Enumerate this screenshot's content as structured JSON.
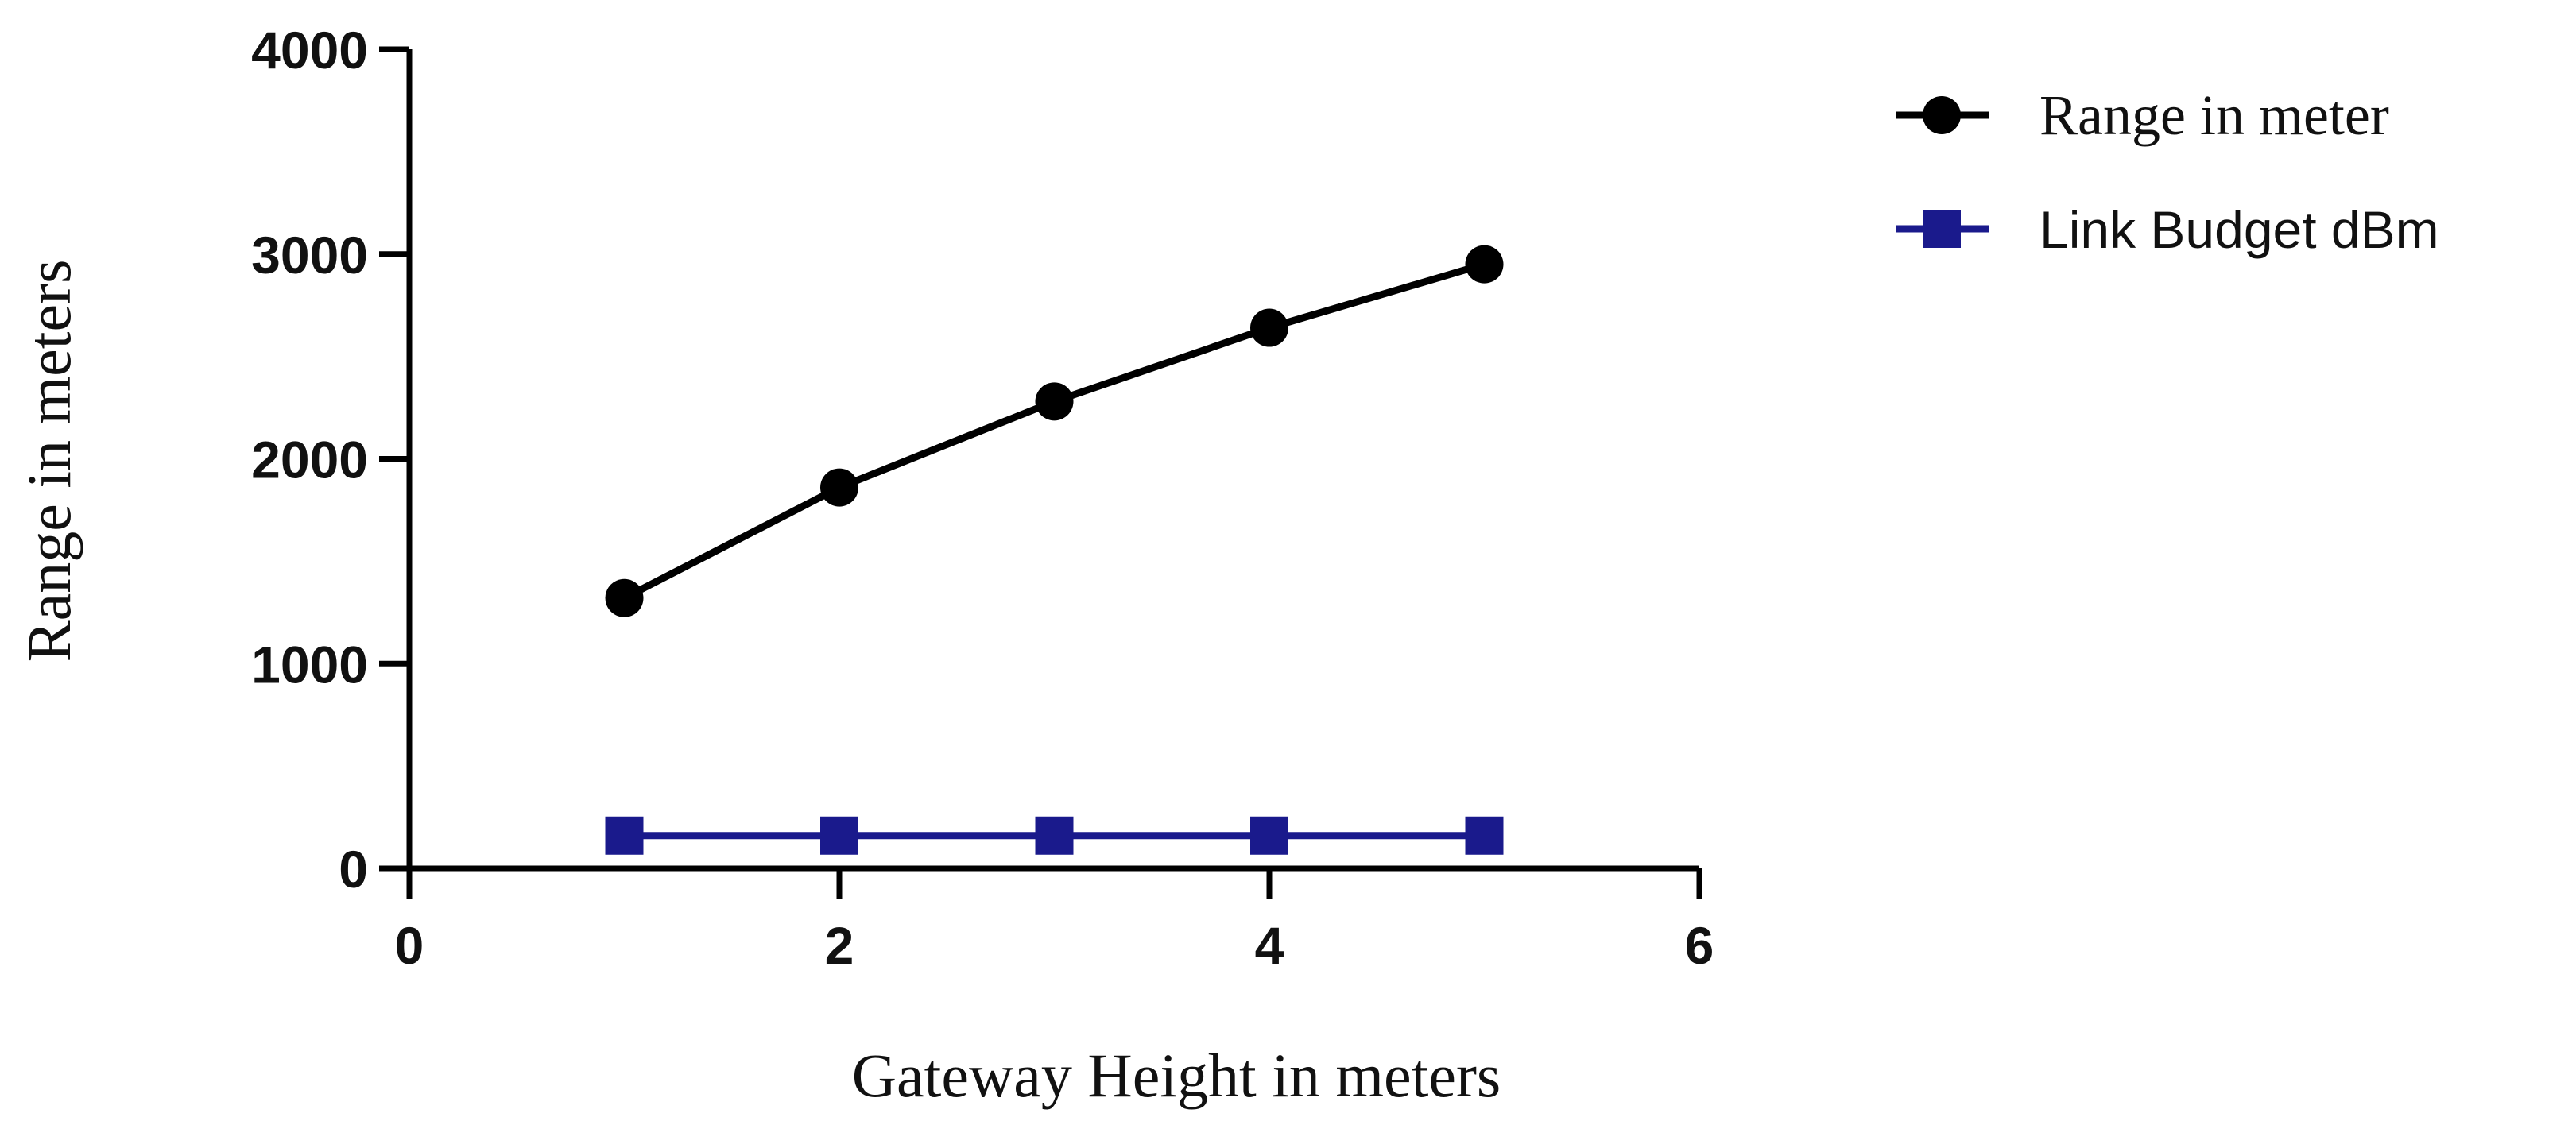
{
  "chart_data": {
    "type": "line",
    "title": "",
    "xlabel": "Gateway Height in meters",
    "ylabel": "Range in meters",
    "xlim": [
      0,
      6
    ],
    "ylim": [
      0,
      4000
    ],
    "x_ticks": [
      "0",
      "2",
      "4",
      "6"
    ],
    "y_ticks": [
      "0",
      "1000",
      "2000",
      "3000",
      "4000"
    ],
    "grid": false,
    "legend_position": "top-right",
    "series": [
      {
        "name": "Range in meter",
        "color": "#000000",
        "marker": "circle",
        "x": [
          1,
          2,
          3,
          4,
          5
        ],
        "y": [
          1320,
          1860,
          2280,
          2640,
          2950
        ]
      },
      {
        "name": "Link Budget dBm",
        "color": "#1a1a8c",
        "marker": "square",
        "x": [
          1,
          2,
          3,
          4,
          5
        ],
        "y": [
          160,
          160,
          160,
          160,
          160
        ]
      }
    ]
  }
}
